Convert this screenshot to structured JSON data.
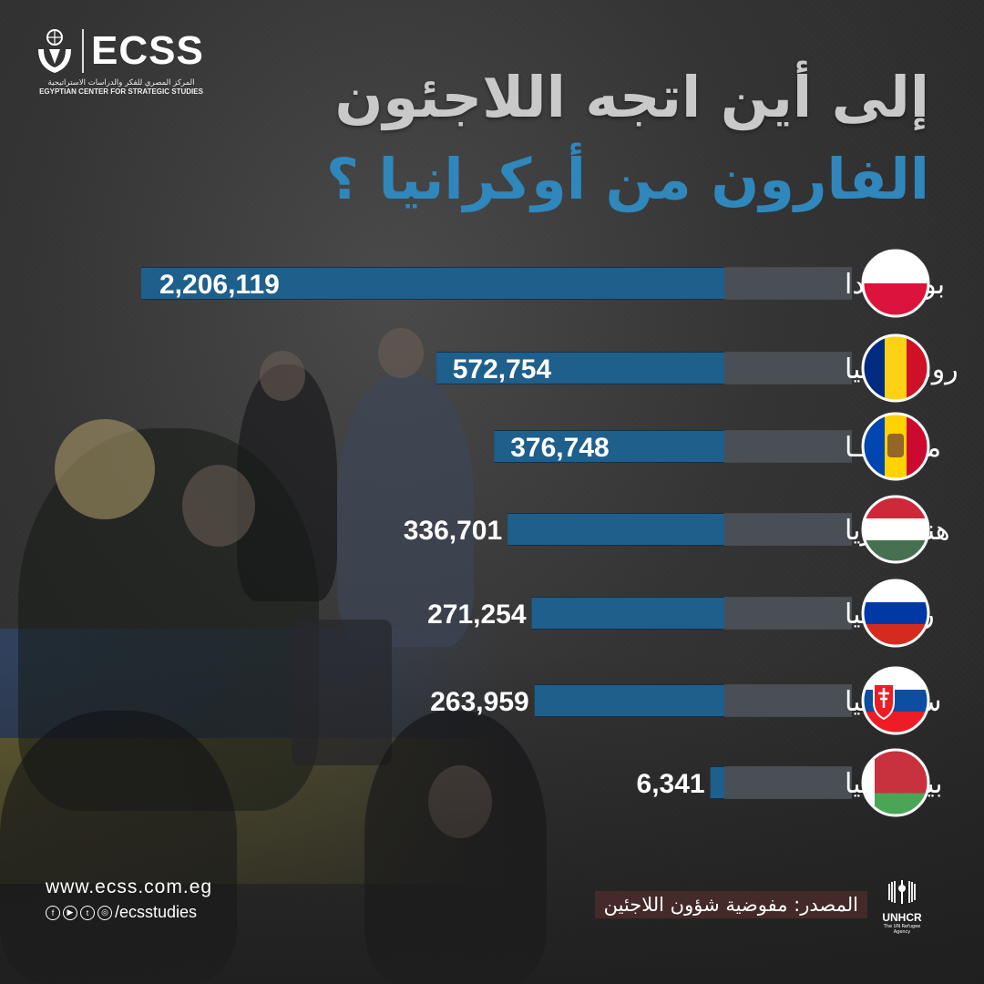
{
  "brand": {
    "name": "ECSS",
    "arabic_name": "المركز المصري للفكر والدراسات الاستراتيجية",
    "english_name": "EGYPTIAN CENTER FOR STRATEGIC STUDIES"
  },
  "title": {
    "line1": "إلى أين اتجه اللاجئون",
    "line2": "الفارون من أوكرانيا ؟"
  },
  "chart_data": {
    "type": "bar",
    "orientation": "horizontal",
    "categories": [
      "بولنـــــدا",
      "رومـــــانيا",
      "مـلـدوفـا",
      "هنـغـــاريا",
      "روســـيا",
      "سلوفاكيا",
      "بيلاروسيا"
    ],
    "values": [
      2206119,
      572754,
      376748,
      336701,
      271254,
      263959,
      6341
    ],
    "value_labels": [
      "2,206,119",
      "572,754",
      "376,748",
      "336,701",
      "271,254",
      "263,959",
      "6,341"
    ],
    "flags": [
      "poland",
      "romania",
      "moldova",
      "hungary",
      "russia",
      "slovakia",
      "belarus"
    ],
    "bar_color": "#1e5f8c"
  },
  "footer": {
    "website": "www.ecss.com.eg",
    "social_handle": "/ecsstudies",
    "social_icons": [
      "facebook-icon",
      "youtube-icon",
      "twitter-icon",
      "instagram-icon"
    ],
    "source": "المصدر: مفوضية شؤون اللاجئين",
    "unhcr_name": "UNHCR",
    "unhcr_sub": "The UN Refugee Agency"
  }
}
